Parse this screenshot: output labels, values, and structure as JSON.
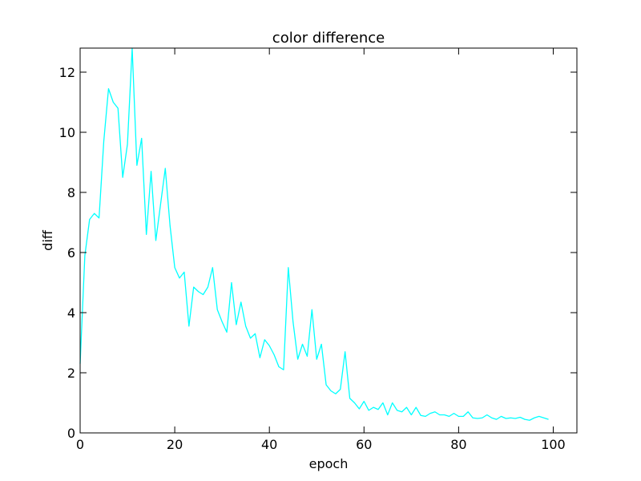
{
  "chart_data": {
    "type": "line",
    "title": "color difference",
    "xlabel": "epoch",
    "ylabel": "diff",
    "xlim": [
      0,
      105
    ],
    "ylim": [
      0,
      12.8
    ],
    "xticks": [
      0,
      20,
      40,
      60,
      80,
      100
    ],
    "yticks": [
      0,
      2,
      4,
      6,
      8,
      10,
      12
    ],
    "grid": false,
    "series": [
      {
        "color": "#00ffff",
        "x": [
          0,
          1,
          2,
          3,
          4,
          5,
          6,
          7,
          8,
          9,
          10,
          11,
          12,
          13,
          14,
          15,
          16,
          17,
          18,
          19,
          20,
          21,
          22,
          23,
          24,
          25,
          26,
          27,
          28,
          29,
          30,
          31,
          32,
          33,
          34,
          35,
          36,
          37,
          38,
          39,
          40,
          41,
          42,
          43,
          44,
          45,
          46,
          47,
          48,
          49,
          50,
          51,
          52,
          53,
          54,
          55,
          56,
          57,
          58,
          59,
          60,
          61,
          62,
          63,
          64,
          65,
          66,
          67,
          68,
          69,
          70,
          71,
          72,
          73,
          74,
          75,
          76,
          77,
          78,
          79,
          80,
          81,
          82,
          83,
          84,
          85,
          86,
          87,
          88,
          89,
          90,
          91,
          92,
          93,
          94,
          95,
          96,
          97,
          98,
          99
        ],
        "y": [
          2.3,
          5.9,
          7.1,
          7.3,
          7.15,
          9.7,
          11.45,
          11.0,
          10.8,
          8.5,
          9.6,
          12.8,
          8.9,
          9.8,
          6.6,
          8.7,
          6.4,
          7.6,
          8.8,
          6.9,
          5.5,
          5.15,
          5.35,
          3.55,
          4.85,
          4.7,
          4.6,
          4.85,
          5.5,
          4.1,
          3.7,
          3.35,
          5.0,
          3.6,
          4.35,
          3.55,
          3.15,
          3.3,
          2.5,
          3.1,
          2.9,
          2.6,
          2.2,
          2.1,
          5.5,
          3.7,
          2.45,
          2.95,
          2.55,
          4.1,
          2.45,
          2.95,
          1.6,
          1.4,
          1.3,
          1.45,
          2.7,
          1.15,
          1.0,
          0.8,
          1.05,
          0.75,
          0.85,
          0.78,
          1.0,
          0.6,
          1.0,
          0.75,
          0.7,
          0.85,
          0.6,
          0.85,
          0.58,
          0.55,
          0.65,
          0.7,
          0.6,
          0.6,
          0.55,
          0.65,
          0.55,
          0.55,
          0.7,
          0.5,
          0.48,
          0.5,
          0.6,
          0.5,
          0.45,
          0.55,
          0.48,
          0.5,
          0.48,
          0.52,
          0.45,
          0.42,
          0.5,
          0.55,
          0.5,
          0.45
        ]
      }
    ]
  }
}
